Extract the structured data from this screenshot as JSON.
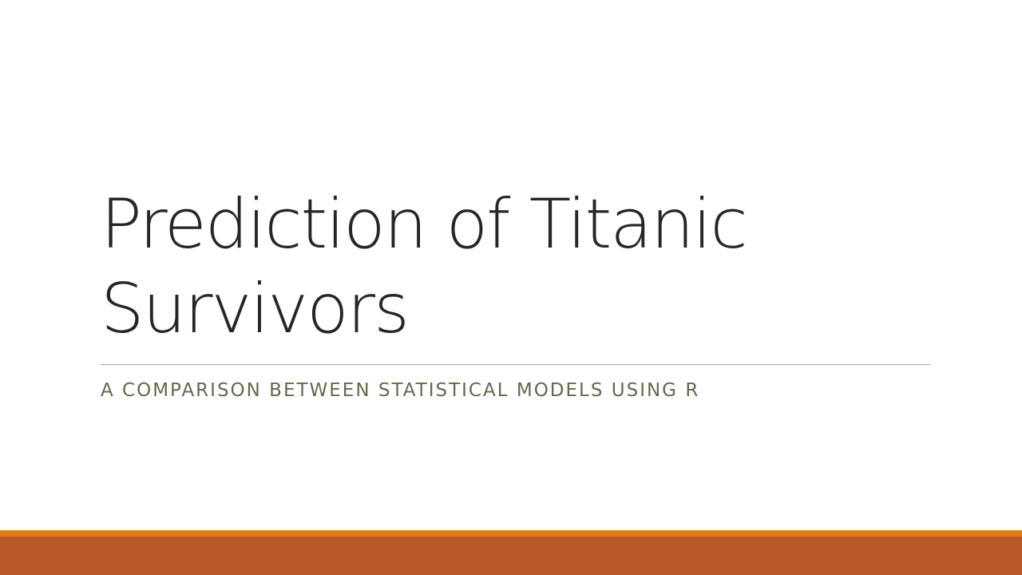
{
  "slide": {
    "title_line1": "Prediction of Titanic",
    "title_line2": "Survivors",
    "subtitle": "A COMPARISON BETWEEN STATISTICAL MODELS USING R"
  },
  "colors": {
    "title": "#262626",
    "subtitle": "#5f6b4d",
    "rule": "#a6a6a6",
    "band_accent": "#e07b16",
    "band_main": "#bb582a"
  }
}
